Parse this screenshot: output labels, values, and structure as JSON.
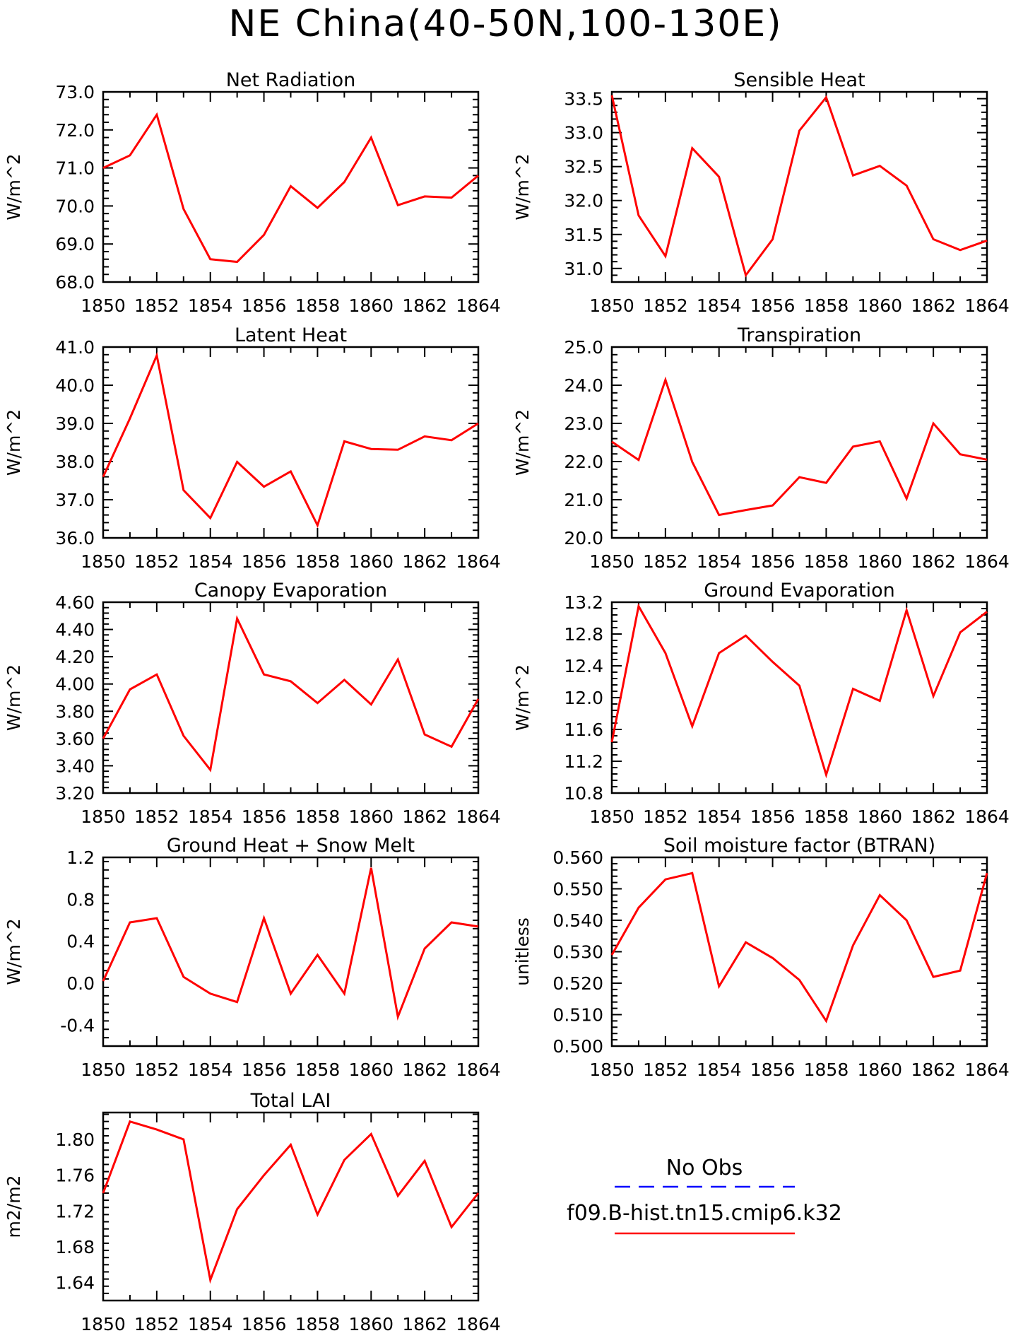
{
  "title": "NE China(40-50N,100-130E)",
  "colors": {
    "series": "#ff0000",
    "obs": "#0000ff",
    "axis": "#000000"
  },
  "legend": {
    "entries": [
      {
        "label": "No Obs",
        "color": "#0000ff",
        "style": "dashed"
      },
      {
        "label": "f09.B-hist.tn15.cmip6.k32",
        "color": "#ff0000",
        "style": "solid"
      }
    ]
  },
  "chart_data": [
    {
      "type": "line",
      "title": "Net Radiation",
      "ylabel": "W/m^2",
      "x": [
        1850,
        1851,
        1852,
        1853,
        1854,
        1855,
        1856,
        1857,
        1858,
        1859,
        1860,
        1861,
        1862,
        1863,
        1864
      ],
      "xticks": [
        "1850",
        "1852",
        "1854",
        "1856",
        "1858",
        "1860",
        "1862",
        "1864"
      ],
      "xlim": [
        1850,
        1864
      ],
      "ylim": [
        68.0,
        73.0
      ],
      "yticks": [
        "68.0",
        "69.0",
        "70.0",
        "71.0",
        "72.0",
        "73.0"
      ],
      "series": [
        {
          "values": [
            71.0,
            71.33,
            72.4,
            69.92,
            68.6,
            68.53,
            69.24,
            70.52,
            69.95,
            70.63,
            71.8,
            70.02,
            70.25,
            70.22,
            70.8
          ]
        }
      ]
    },
    {
      "type": "line",
      "title": "Sensible Heat",
      "ylabel": "W/m^2",
      "x": [
        1850,
        1851,
        1852,
        1853,
        1854,
        1855,
        1856,
        1857,
        1858,
        1859,
        1860,
        1861,
        1862,
        1863,
        1864
      ],
      "xticks": [
        "1850",
        "1852",
        "1854",
        "1856",
        "1858",
        "1860",
        "1862",
        "1864"
      ],
      "xlim": [
        1850,
        1864
      ],
      "ylim": [
        30.8,
        33.6
      ],
      "yticks": [
        "31.0",
        "31.5",
        "32.0",
        "32.5",
        "33.0",
        "33.5"
      ],
      "series": [
        {
          "values": [
            33.55,
            31.78,
            31.18,
            32.77,
            32.35,
            30.9,
            31.43,
            33.03,
            33.52,
            32.37,
            32.51,
            32.22,
            31.43,
            31.27,
            31.41
          ]
        }
      ]
    },
    {
      "type": "line",
      "title": "Latent Heat",
      "ylabel": "W/m^2",
      "x": [
        1850,
        1851,
        1852,
        1853,
        1854,
        1855,
        1856,
        1857,
        1858,
        1859,
        1860,
        1861,
        1862,
        1863,
        1864
      ],
      "xticks": [
        "1850",
        "1852",
        "1854",
        "1856",
        "1858",
        "1860",
        "1862",
        "1864"
      ],
      "xlim": [
        1850,
        1864
      ],
      "ylim": [
        36.0,
        41.0
      ],
      "yticks": [
        "36.0",
        "37.0",
        "38.0",
        "39.0",
        "40.0",
        "41.0"
      ],
      "series": [
        {
          "values": [
            37.6,
            39.13,
            40.78,
            37.25,
            36.52,
            37.99,
            37.34,
            37.74,
            36.33,
            38.53,
            38.33,
            38.31,
            38.66,
            38.56,
            39.0
          ]
        }
      ]
    },
    {
      "type": "line",
      "title": "Transpiration",
      "ylabel": "W/m^2",
      "x": [
        1850,
        1851,
        1852,
        1853,
        1854,
        1855,
        1856,
        1857,
        1858,
        1859,
        1860,
        1861,
        1862,
        1863,
        1864
      ],
      "xticks": [
        "1850",
        "1852",
        "1854",
        "1856",
        "1858",
        "1860",
        "1862",
        "1864"
      ],
      "xlim": [
        1850,
        1864
      ],
      "ylim": [
        20.0,
        25.0
      ],
      "yticks": [
        "20.0",
        "21.0",
        "22.0",
        "23.0",
        "24.0",
        "25.0"
      ],
      "series": [
        {
          "values": [
            22.52,
            22.04,
            24.14,
            21.99,
            20.6,
            20.73,
            20.85,
            21.59,
            21.44,
            22.39,
            22.53,
            21.03,
            23.0,
            22.19,
            22.05
          ]
        }
      ]
    },
    {
      "type": "line",
      "title": "Canopy Evaporation",
      "ylabel": "W/m^2",
      "x": [
        1850,
        1851,
        1852,
        1853,
        1854,
        1855,
        1856,
        1857,
        1858,
        1859,
        1860,
        1861,
        1862,
        1863,
        1864
      ],
      "xticks": [
        "1850",
        "1852",
        "1854",
        "1856",
        "1858",
        "1860",
        "1862",
        "1864"
      ],
      "xlim": [
        1850,
        1864
      ],
      "ylim": [
        3.2,
        4.6
      ],
      "yticks": [
        "3.20",
        "3.40",
        "3.60",
        "3.80",
        "4.00",
        "4.20",
        "4.40",
        "4.60"
      ],
      "series": [
        {
          "values": [
            3.6,
            3.96,
            4.07,
            3.62,
            3.37,
            4.48,
            4.07,
            4.02,
            3.86,
            4.03,
            3.85,
            4.18,
            3.63,
            3.54,
            3.89
          ]
        }
      ]
    },
    {
      "type": "line",
      "title": "Ground Evaporation",
      "ylabel": "W/m^2",
      "x": [
        1850,
        1851,
        1852,
        1853,
        1854,
        1855,
        1856,
        1857,
        1858,
        1859,
        1860,
        1861,
        1862,
        1863,
        1864
      ],
      "xticks": [
        "1850",
        "1852",
        "1854",
        "1856",
        "1858",
        "1860",
        "1862",
        "1864"
      ],
      "xlim": [
        1850,
        1864
      ],
      "ylim": [
        10.8,
        13.2
      ],
      "yticks": [
        "10.8",
        "11.2",
        "11.6",
        "12.0",
        "12.4",
        "12.8",
        "13.2"
      ],
      "series": [
        {
          "values": [
            11.44,
            13.15,
            12.56,
            11.64,
            12.56,
            12.78,
            12.45,
            12.15,
            11.03,
            12.11,
            11.96,
            13.1,
            12.02,
            12.82,
            13.08
          ]
        }
      ]
    },
    {
      "type": "line",
      "title": "Ground Heat + Snow Melt",
      "ylabel": "W/m^2",
      "x": [
        1850,
        1851,
        1852,
        1853,
        1854,
        1855,
        1856,
        1857,
        1858,
        1859,
        1860,
        1861,
        1862,
        1863,
        1864
      ],
      "xticks": [
        "1850",
        "1852",
        "1854",
        "1856",
        "1858",
        "1860",
        "1862",
        "1864"
      ],
      "xlim": [
        1850,
        1864
      ],
      "ylim": [
        -0.6,
        1.2
      ],
      "yticks": [
        "-0.4",
        "0.0",
        "0.4",
        "0.8",
        "1.2"
      ],
      "series": [
        {
          "values": [
            0.02,
            0.58,
            0.62,
            0.06,
            -0.1,
            -0.18,
            0.62,
            -0.1,
            0.27,
            -0.1,
            1.1,
            -0.32,
            0.33,
            0.58,
            0.54
          ]
        }
      ]
    },
    {
      "type": "line",
      "title": "Soil moisture factor (BTRAN)",
      "ylabel": "unitless",
      "x": [
        1850,
        1851,
        1852,
        1853,
        1854,
        1855,
        1856,
        1857,
        1858,
        1859,
        1860,
        1861,
        1862,
        1863,
        1864
      ],
      "xticks": [
        "1850",
        "1852",
        "1854",
        "1856",
        "1858",
        "1860",
        "1862",
        "1864"
      ],
      "xlim": [
        1850,
        1864
      ],
      "ylim": [
        0.5,
        0.56
      ],
      "yticks": [
        "0.500",
        "0.510",
        "0.520",
        "0.530",
        "0.540",
        "0.550",
        "0.560"
      ],
      "series": [
        {
          "values": [
            0.529,
            0.544,
            0.553,
            0.555,
            0.519,
            0.533,
            0.528,
            0.521,
            0.508,
            0.532,
            0.548,
            0.54,
            0.522,
            0.524,
            0.555
          ]
        }
      ]
    },
    {
      "type": "line",
      "title": "Total LAI",
      "ylabel": "m2/m2",
      "x": [
        1850,
        1851,
        1852,
        1853,
        1854,
        1855,
        1856,
        1857,
        1858,
        1859,
        1860,
        1861,
        1862,
        1863,
        1864
      ],
      "xticks": [
        "1850",
        "1852",
        "1854",
        "1856",
        "1858",
        "1860",
        "1862",
        "1864"
      ],
      "xlim": [
        1850,
        1864
      ],
      "ylim": [
        1.62,
        1.83
      ],
      "yticks": [
        "1.64",
        "1.68",
        "1.72",
        "1.76",
        "1.80"
      ],
      "series": [
        {
          "values": [
            1.74,
            1.82,
            1.811,
            1.8,
            1.643,
            1.722,
            1.76,
            1.794,
            1.716,
            1.777,
            1.806,
            1.737,
            1.776,
            1.702,
            1.74
          ]
        }
      ]
    }
  ]
}
